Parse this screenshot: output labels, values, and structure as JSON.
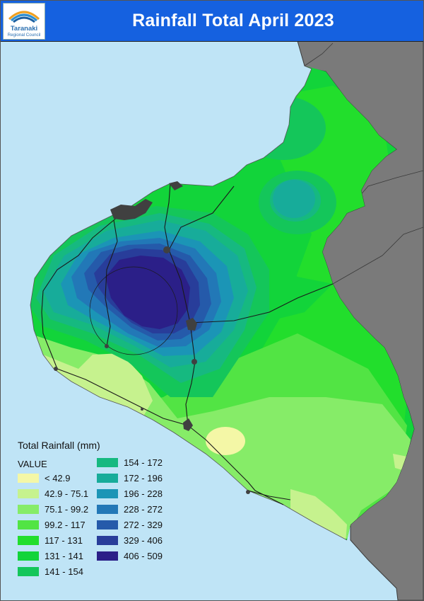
{
  "header": {
    "title": "Rainfall Total April 2023",
    "logo_name": "Taranaki",
    "logo_subtitle": "Regional Council"
  },
  "legend": {
    "title": "Total Rainfall (mm)",
    "value_heading": "VALUE",
    "classes": [
      {
        "label": "< 42.9",
        "color": "#f4f7a6"
      },
      {
        "label": "42.9 - 75.1",
        "color": "#c6f28e"
      },
      {
        "label": "75.1 - 99.2",
        "color": "#86ec68"
      },
      {
        "label": "99.2 - 117",
        "color": "#52e444"
      },
      {
        "label": "117 - 131",
        "color": "#22de2c"
      },
      {
        "label": "131 - 141",
        "color": "#12d43a"
      },
      {
        "label": "141 - 154",
        "color": "#14c65a"
      },
      {
        "label": "154 - 172",
        "color": "#16b980"
      },
      {
        "label": "172 - 196",
        "color": "#17ac9a"
      },
      {
        "label": "196 - 228",
        "color": "#1b95b6"
      },
      {
        "label": "228 - 272",
        "color": "#2278b7"
      },
      {
        "label": "272 - 329",
        "color": "#255aaa"
      },
      {
        "label": "329 - 406",
        "color": "#283d9a"
      },
      {
        "label": "406 - 509",
        "color": "#2b1f88"
      }
    ]
  },
  "colors": {
    "sea": "#bfe4f6",
    "neighbouring_land": "#7a7a7a",
    "urban_area": "#404040",
    "roads": "#1a1a1a",
    "header_bar": "#1561e0"
  }
}
